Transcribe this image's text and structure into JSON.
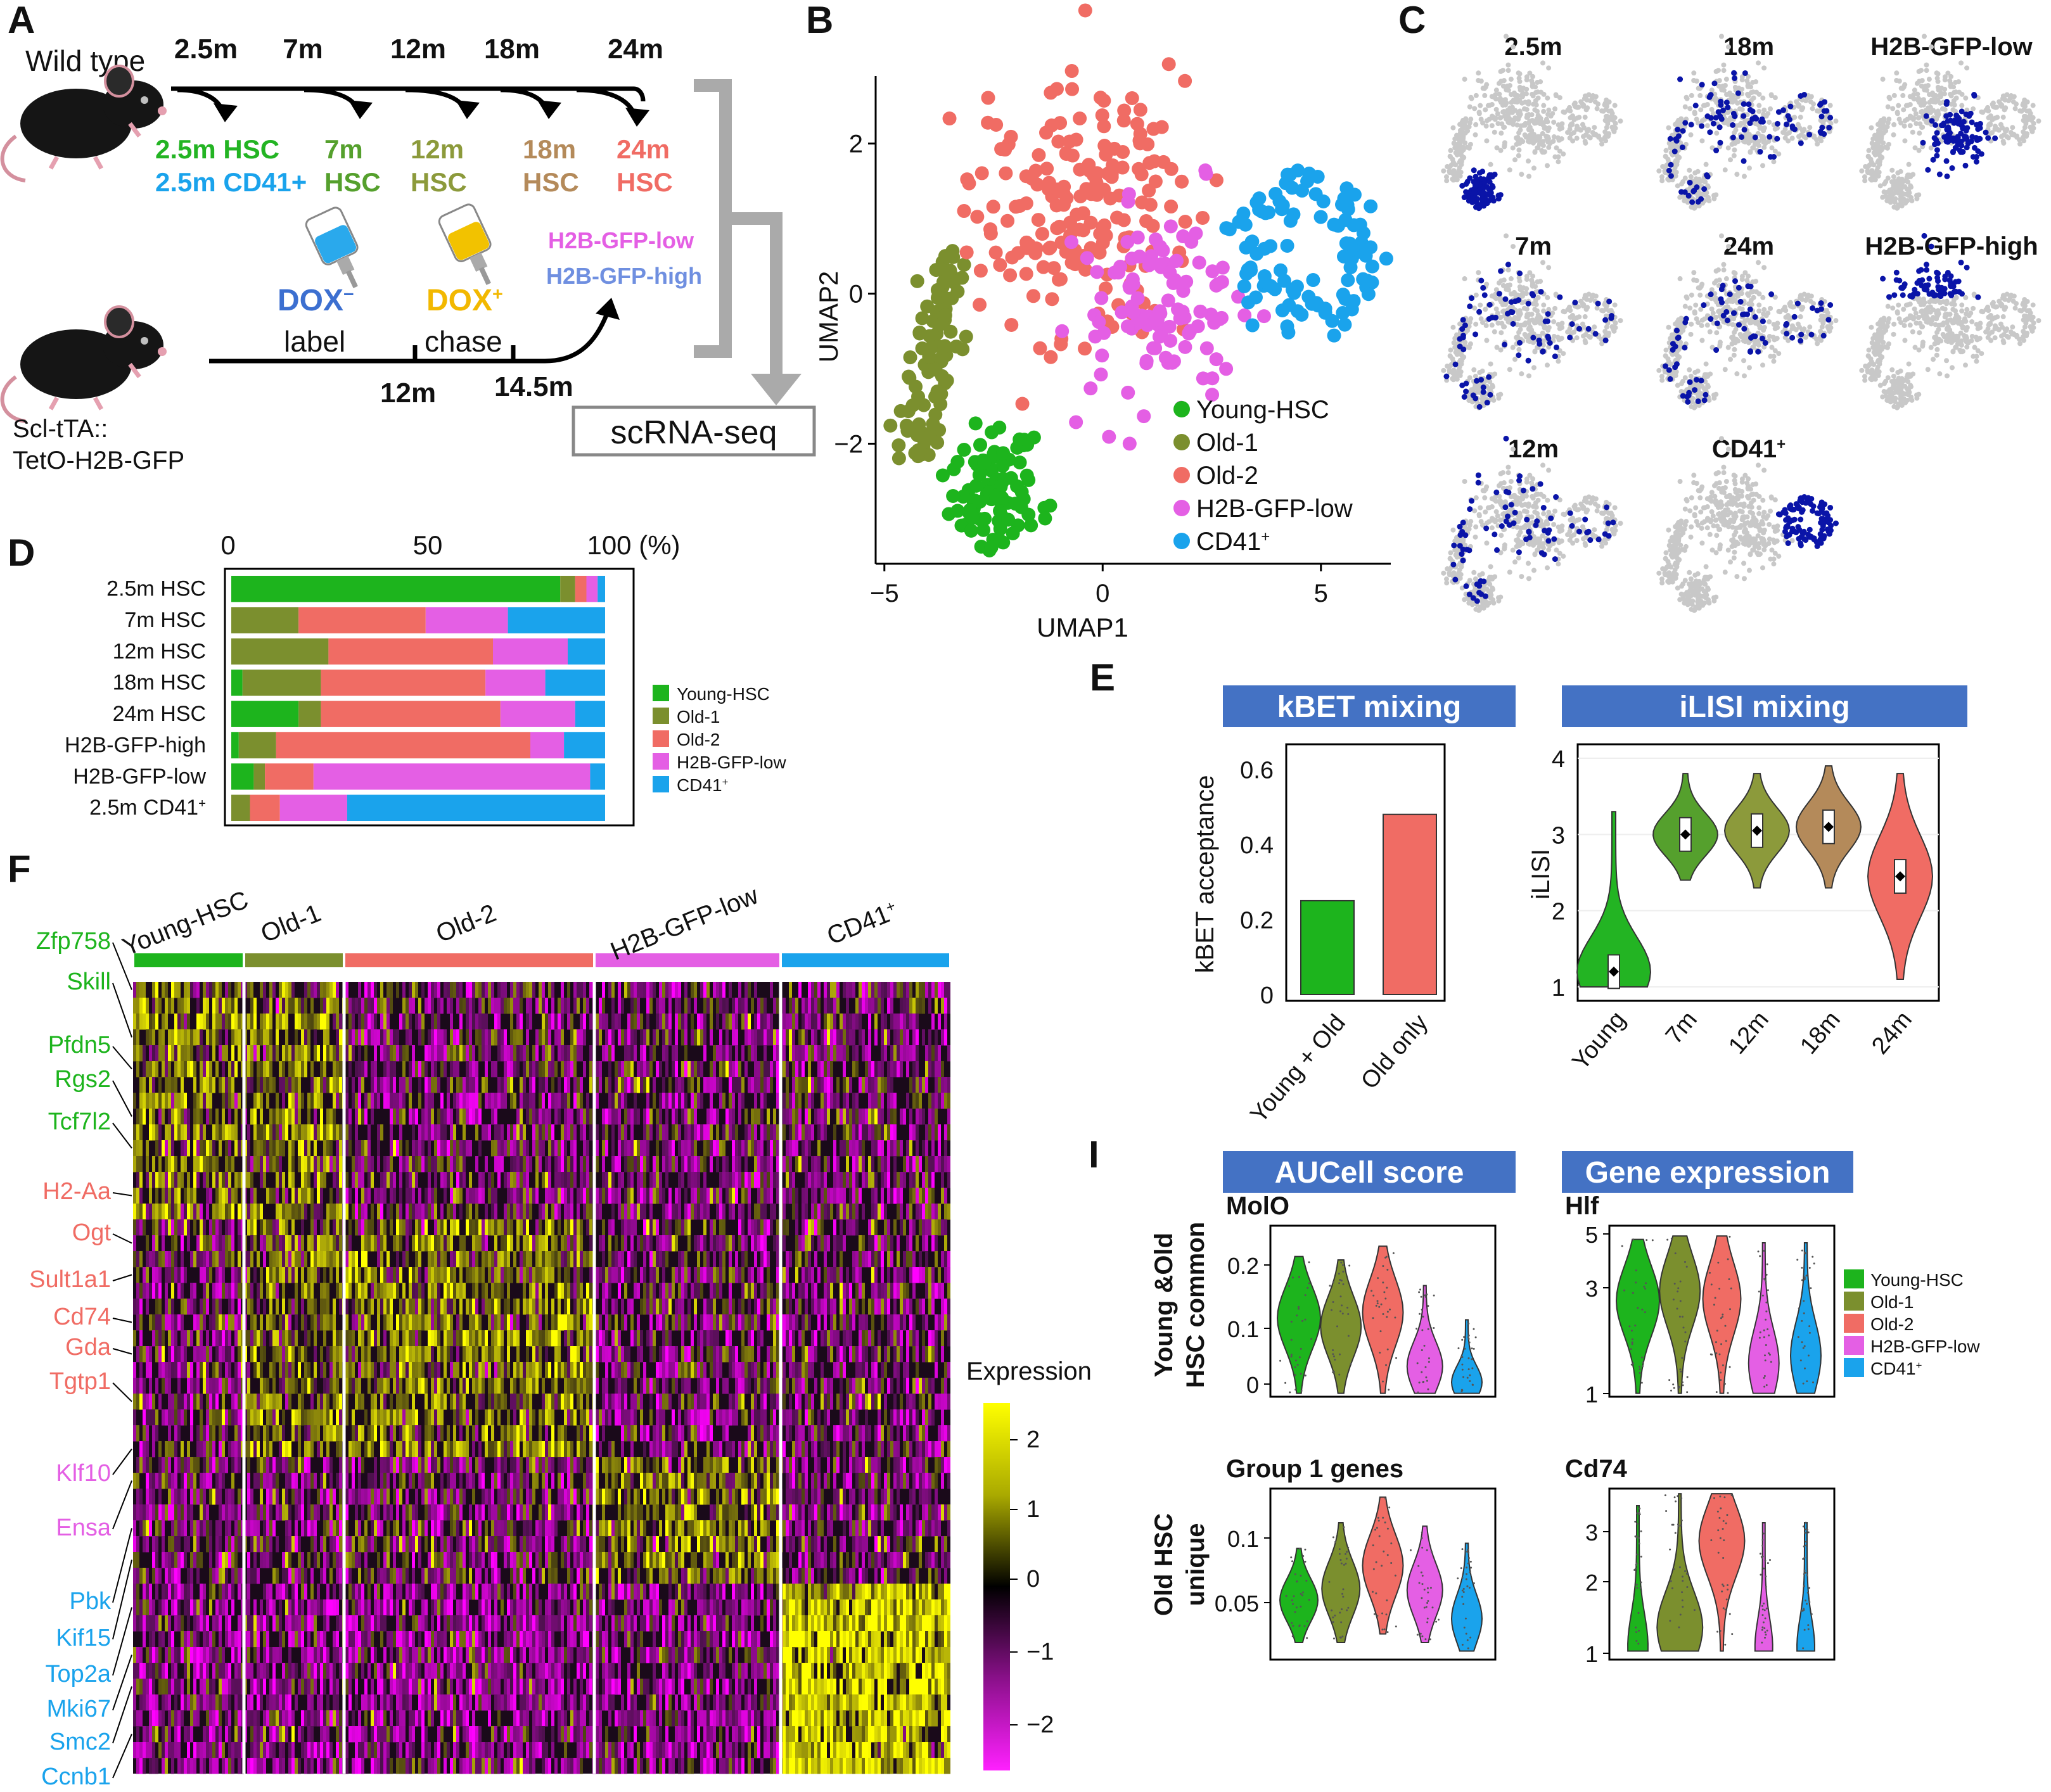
{
  "colors": {
    "young": "#1db41d",
    "old1": "#7b8f2e",
    "old2": "#f06c64",
    "h2blow": "#e45fe4",
    "cd41": "#1aa3ec",
    "navy": "#0a14a8",
    "grey": "#c8c8c8",
    "header": "#4472c4",
    "c2_5": "#23b423",
    "c7": "#55a02d",
    "c12": "#8c9a3b",
    "c18": "#b48a5a",
    "c24": "#f06c64"
  },
  "panel_letters": [
    "A",
    "B",
    "C",
    "D",
    "E",
    "F",
    "I"
  ],
  "A": {
    "wild_type": "Wild type",
    "timepoints": [
      "2.5m",
      "7m",
      "12m",
      "18m",
      "24m"
    ],
    "labels": [
      {
        "l1": "2.5m HSC",
        "l2": "2.5m CD41+",
        "c1": "c2_5",
        "c2": "cd41"
      },
      {
        "l1": "7m",
        "l2": "HSC",
        "c1": "c7",
        "c2": "c7"
      },
      {
        "l1": "12m",
        "l2": "HSC",
        "c1": "c12",
        "c2": "c12"
      },
      {
        "l1": "18m",
        "l2": "HSC",
        "c1": "c18",
        "c2": "c18"
      },
      {
        "l1": "24m",
        "l2": "HSC",
        "c1": "c24",
        "c2": "c24"
      }
    ],
    "dox_minus": "DOX",
    "dox_minus_sup": "−",
    "label": "label",
    "dox_plus": "DOX",
    "dox_plus_sup": "+",
    "chase": "chase",
    "h2b_low": "H2B-GFP-low",
    "h2b_high": "H2B-GFP-high",
    "t12": "12m",
    "t14": "14.5m",
    "strain1": "Scl-tTA::",
    "strain2": "TetO-H2B-GFP",
    "scrna": "scRNA-seq"
  },
  "B": {
    "chart_data": {
      "type": "scatter",
      "xlabel": "UMAP1",
      "ylabel": "UMAP2",
      "xticks": [
        -5,
        0,
        5
      ],
      "yticks": [
        -2,
        0,
        2
      ],
      "xlim": [
        -5.2,
        6.6
      ],
      "ylim": [
        -3.6,
        2.9
      ],
      "series": [
        {
          "name": "Young-HSC",
          "color": "young"
        },
        {
          "name": "Old-1",
          "color": "old1"
        },
        {
          "name": "Old-2",
          "color": "old2"
        },
        {
          "name": "H2B-GFP-low",
          "color": "h2blow"
        },
        {
          "name": "CD41",
          "sup": "+",
          "color": "cd41"
        }
      ]
    }
  },
  "C": {
    "panels": [
      {
        "title": "2.5m"
      },
      {
        "title": "18m"
      },
      {
        "title": "H2B-GFP-low"
      },
      {
        "title": "7m"
      },
      {
        "title": "24m"
      },
      {
        "title": "H2B-GFP-high"
      },
      {
        "title": "12m"
      },
      {
        "title": "CD41",
        "sup": "+"
      }
    ]
  },
  "D": {
    "chart_data": {
      "type": "bar",
      "stacked": true,
      "orientation": "horizontal",
      "xticks": [
        "0",
        "50",
        "100 (%)"
      ],
      "categories": [
        "2.5m HSC",
        "7m HSC",
        "12m HSC",
        "18m HSC",
        "24m HSC",
        "H2B-GFP-high",
        "H2B-GFP-low",
        "2.5m CD41+"
      ],
      "series": [
        {
          "name": "Young-HSC",
          "color": "young",
          "values": [
            88,
            0,
            0,
            3,
            18,
            2,
            6,
            0
          ]
        },
        {
          "name": "Old-1",
          "color": "old1",
          "values": [
            4,
            18,
            26,
            21,
            6,
            10,
            3,
            5
          ]
        },
        {
          "name": "Old-2",
          "color": "old2",
          "values": [
            3,
            34,
            44,
            44,
            48,
            68,
            13,
            8
          ]
        },
        {
          "name": "H2B-GFP-low",
          "color": "h2blow",
          "values": [
            3,
            22,
            20,
            16,
            20,
            9,
            74,
            18
          ]
        },
        {
          "name": "CD41",
          "sup": "+",
          "color": "cd41",
          "values": [
            2,
            26,
            10,
            16,
            8,
            11,
            4,
            69
          ]
        }
      ]
    }
  },
  "E": {
    "kbet": {
      "header": "kBET mixing",
      "chart_data": {
        "type": "bar",
        "ylabel": "kBET acceptance",
        "yticks": [
          "0",
          "0.2",
          "0.4",
          "0.6"
        ],
        "ylim": [
          0,
          0.65
        ],
        "categories": [
          "Young + Old",
          "Old only"
        ],
        "values": [
          0.25,
          0.48
        ]
      }
    },
    "ilisi": {
      "header": "iLISI mixing",
      "chart_data": {
        "type": "violin",
        "ylabel": "iLISI",
        "yticks": [
          "1",
          "2",
          "3",
          "4"
        ],
        "ylim": [
          0.9,
          4.1
        ],
        "categories": [
          "Young",
          "7m",
          "12m",
          "18m",
          "24m"
        ],
        "medians": [
          1.2,
          3.0,
          3.05,
          3.1,
          2.45
        ]
      }
    }
  },
  "F": {
    "groups": [
      "Young-HSC",
      "Old-1",
      "Old-2",
      "H2B-GFP-low",
      "CD41+"
    ],
    "group_sup": "+",
    "genes": [
      {
        "name": "Zfp758",
        "c": "young"
      },
      {
        "name": "Skill",
        "c": "young"
      },
      {
        "name": "Pfdn5",
        "c": "young"
      },
      {
        "name": "Rgs2",
        "c": "young"
      },
      {
        "name": "Tcf7l2",
        "c": "young"
      },
      {
        "name": "H2-Aa",
        "c": "old2"
      },
      {
        "name": "Ogt",
        "c": "old2"
      },
      {
        "name": "Sult1a1",
        "c": "old2"
      },
      {
        "name": "Cd74",
        "c": "old2"
      },
      {
        "name": "Gda",
        "c": "old2"
      },
      {
        "name": "Tgtp1",
        "c": "old2"
      },
      {
        "name": "Klf10",
        "c": "h2blow"
      },
      {
        "name": "Ensa",
        "c": "h2blow"
      },
      {
        "name": "Pbk",
        "c": "cd41"
      },
      {
        "name": "Kif15",
        "c": "cd41"
      },
      {
        "name": "Top2a",
        "c": "cd41"
      },
      {
        "name": "Mki67",
        "c": "cd41"
      },
      {
        "name": "Smc2",
        "c": "cd41"
      },
      {
        "name": "Ccnb1",
        "c": "cd41"
      }
    ],
    "legend_title": "Expression",
    "legend_ticks": [
      "2",
      "1",
      "0",
      "−1",
      "−2"
    ]
  },
  "I": {
    "aucell_header": "AUCell score",
    "gene_header": "Gene expression",
    "row1_ylabel": [
      "Young &Old",
      "HSC common"
    ],
    "row2_ylabel": [
      "Old HSC",
      "unique"
    ],
    "p1": {
      "title": "MolO",
      "yticks": [
        "0",
        "0.1",
        "0.2"
      ]
    },
    "p2": {
      "title": "Hlf",
      "yticks": [
        "1",
        "3",
        "5"
      ]
    },
    "p3": {
      "title": "Group 1 genes",
      "yticks": [
        "0.05",
        "0.1"
      ]
    },
    "p4": {
      "title": "Cd74",
      "yticks": [
        "1",
        "2",
        "3"
      ]
    },
    "legend": [
      {
        "name": "Young-HSC",
        "color": "young"
      },
      {
        "name": "Old-1",
        "color": "old1"
      },
      {
        "name": "Old-2",
        "color": "old2"
      },
      {
        "name": "H2B-GFP-low",
        "color": "h2blow"
      },
      {
        "name": "CD41",
        "sup": "+",
        "color": "cd41"
      }
    ]
  }
}
